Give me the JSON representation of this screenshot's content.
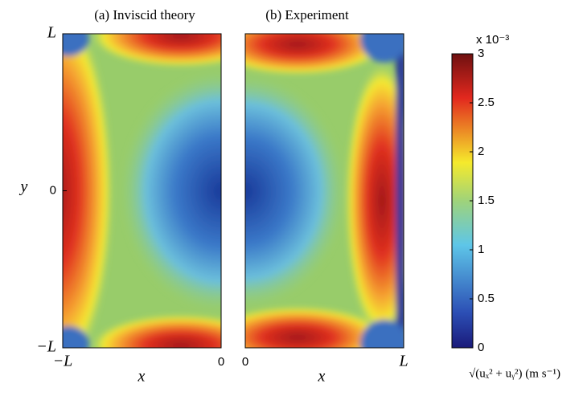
{
  "chart_data": [
    {
      "type": "contour",
      "title": "(a) Inviscid theory",
      "xlabel": "x",
      "ylabel": "y",
      "xlim": [
        -1,
        0
      ],
      "xticks": [
        {
          "value": -1,
          "label": "−L"
        },
        0
      ],
      "ylim": [
        -1,
        1
      ],
      "yticks": [
        {
          "value": -1,
          "label": "−L"
        },
        0,
        {
          "value": 1,
          "label": "L"
        }
      ]
    },
    {
      "type": "contour",
      "title": "(b) Experiment",
      "xlabel": "x",
      "xlim": [
        0,
        1
      ],
      "xticks": [
        0,
        {
          "value": 1,
          "label": "L"
        }
      ],
      "ylim": [
        -1,
        1
      ]
    },
    {
      "type": "colorbar",
      "colormap": "jet",
      "ylim": [
        0,
        3
      ],
      "yticks": [
        0,
        0.5,
        1,
        1.5,
        2,
        2.5,
        3
      ],
      "multiplier": "x 10⁻³",
      "label": "√(uₓ² + uᵧ²) (m s⁻¹)"
    }
  ]
}
